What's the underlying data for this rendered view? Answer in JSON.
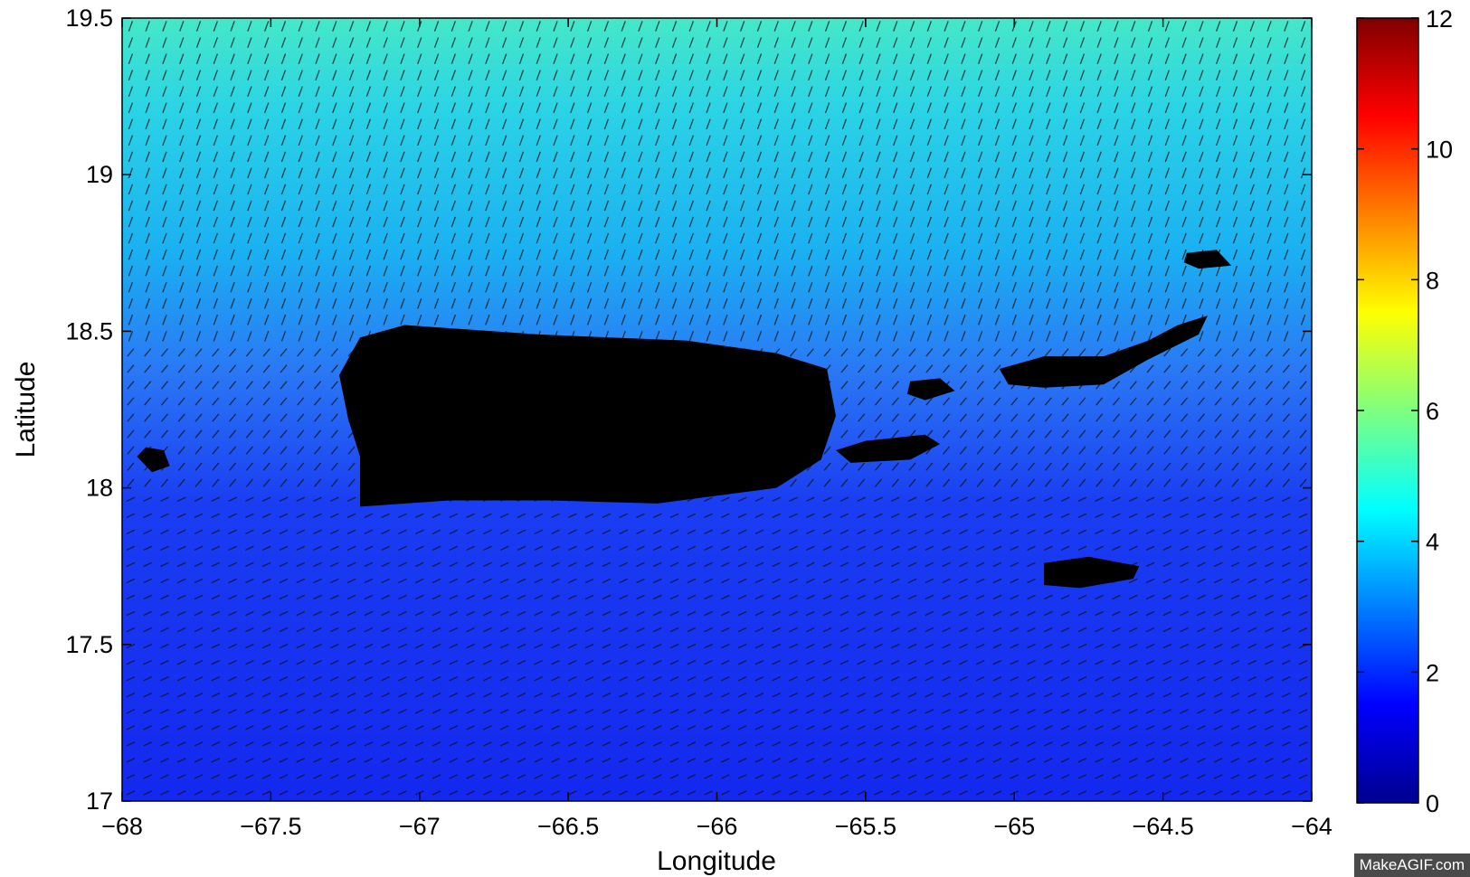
{
  "chart_data": {
    "type": "heatmap",
    "title": "",
    "xlabel": "Longitude",
    "ylabel": "Latitude",
    "xlim": [
      -68,
      -64
    ],
    "ylim": [
      17,
      19.5
    ],
    "x_ticks": [
      "−68",
      "−67.5",
      "−67",
      "−66.5",
      "−66",
      "−65.5",
      "−65",
      "−64.5",
      "−64"
    ],
    "x_tick_values": [
      -68,
      -67.5,
      -67,
      -66.5,
      -66,
      -65.5,
      -65,
      -64.5,
      -64
    ],
    "y_ticks": [
      "17",
      "17.5",
      "18",
      "18.5",
      "19",
      "19.5"
    ],
    "y_tick_values": [
      17,
      17.5,
      18,
      18.5,
      19,
      19.5
    ],
    "colorbar": {
      "min": 0,
      "max": 12,
      "ticks": [
        "0",
        "2",
        "4",
        "6",
        "8",
        "10",
        "12"
      ],
      "tick_values": [
        0,
        2,
        4,
        6,
        8,
        10,
        12
      ],
      "colormap": "jet"
    },
    "field_samples": [
      {
        "lat": 19.5,
        "value": 4.8
      },
      {
        "lat": 19.0,
        "value": 4.2
      },
      {
        "lat": 18.6,
        "value": 3.2
      },
      {
        "lat": 18.2,
        "value": 2.2
      },
      {
        "lat": 17.8,
        "value": 1.6
      },
      {
        "lat": 17.0,
        "value": 1.5
      }
    ],
    "landmasses": [
      {
        "name": "Puerto Rico",
        "lon": -66.45,
        "lat": 18.23
      },
      {
        "name": "Mona",
        "lon": -67.9,
        "lat": 18.09
      },
      {
        "name": "Vieques",
        "lon": -65.43,
        "lat": 18.12
      },
      {
        "name": "Culebra",
        "lon": -65.3,
        "lat": 18.32
      },
      {
        "name": "St. Croix",
        "lon": -64.75,
        "lat": 17.73
      },
      {
        "name": "St. Thomas / St. John / BVI",
        "lon": -64.7,
        "lat": 18.38
      },
      {
        "name": "Anegada",
        "lon": -64.35,
        "lat": 18.73
      }
    ],
    "grid": false,
    "legend": "none"
  },
  "watermark": "MakeAGIF.com",
  "colors": {
    "land": "#000000",
    "arrows": "#111111",
    "cmap_0": "#00008f",
    "cmap_low": "#0000ff",
    "cmap_mid": "#00ffff",
    "cmap_high": "#ffff00",
    "cmap_top": "#ff0000",
    "cmap_max": "#800000"
  }
}
